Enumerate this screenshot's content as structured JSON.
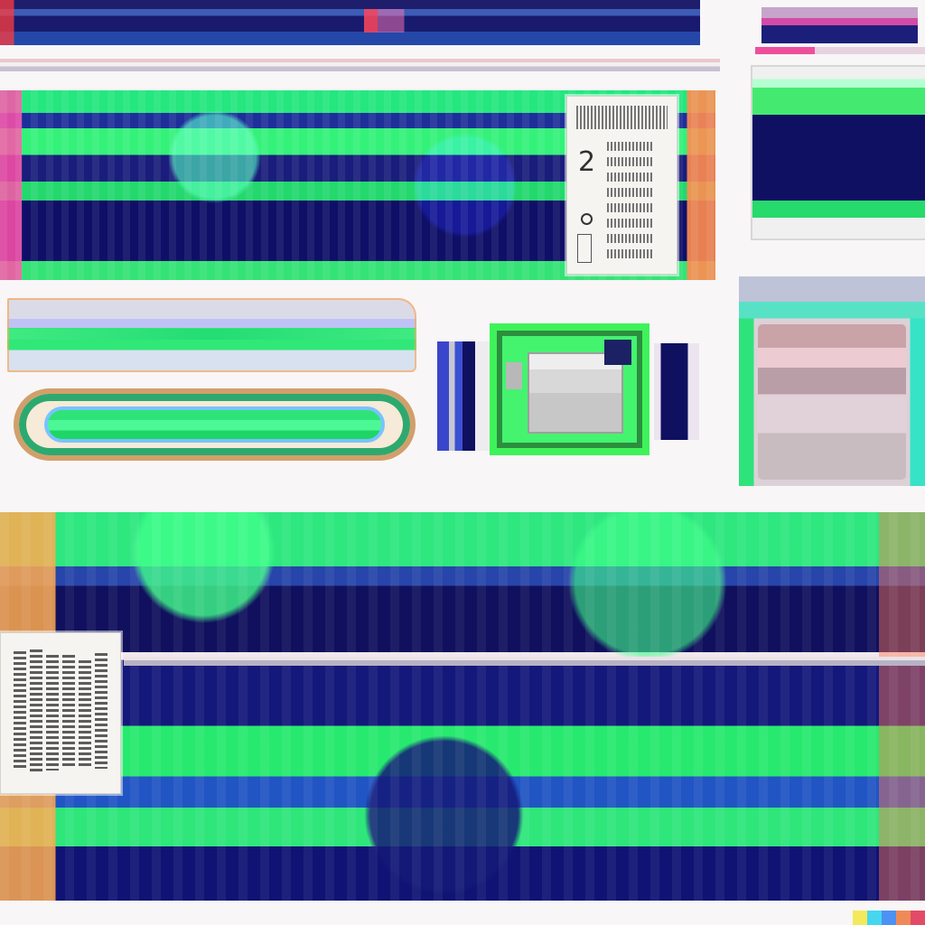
{
  "canvas": {
    "title": ""
  },
  "upper": {
    "card": {
      "number": "2"
    }
  },
  "bottom": {
    "card": {
      "label": ""
    }
  },
  "legend": {
    "colors": [
      "#f4e95a",
      "#45d7ee",
      "#4c91f4",
      "#ef8a58",
      "#e24a67"
    ]
  }
}
